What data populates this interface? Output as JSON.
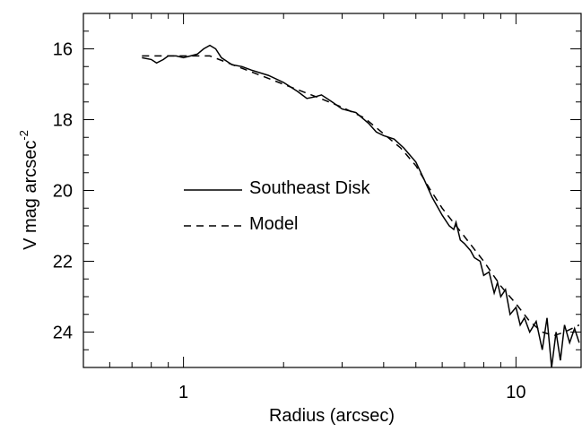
{
  "chart_data": {
    "type": "line",
    "xlabel": "Radius (arcsec)",
    "ylabel": {
      "text": "V mag arcsec",
      "superscript": "-2"
    },
    "xscale": "log",
    "xlim": [
      0.5,
      15.7
    ],
    "xticks": [
      1,
      10
    ],
    "xminorticks": [
      0.5,
      0.6,
      0.7,
      0.8,
      0.9,
      2,
      3,
      4,
      5,
      6,
      7,
      8,
      9
    ],
    "ylim": [
      25,
      15
    ],
    "yticks": [
      16,
      18,
      20,
      22,
      24
    ],
    "yminorticks": [
      15,
      15.5,
      16.5,
      17,
      17.5,
      18.5,
      19,
      19.5,
      20.5,
      21,
      21.5,
      22.5,
      23,
      23.5,
      24.5,
      25
    ],
    "legend": "center-left",
    "series": [
      {
        "name": "Southeast Disk",
        "color": "#000000",
        "dash": "solid",
        "x": [
          0.75,
          0.8,
          0.83,
          0.87,
          0.9,
          0.95,
          1.0,
          1.05,
          1.1,
          1.15,
          1.2,
          1.25,
          1.3,
          1.4,
          1.5,
          1.6,
          1.8,
          2.0,
          2.2,
          2.35,
          2.5,
          2.6,
          2.8,
          3.0,
          3.3,
          3.6,
          3.8,
          4.0,
          4.3,
          4.6,
          5.0,
          5.3,
          5.6,
          6.0,
          6.3,
          6.5,
          6.6,
          6.8,
          7.0,
          7.3,
          7.5,
          7.8,
          8.0,
          8.3,
          8.6,
          8.8,
          9.0,
          9.3,
          9.6,
          10.0,
          10.3,
          10.6,
          11.0,
          11.5,
          12.0,
          12.4,
          12.8,
          13.2,
          13.6,
          14.0,
          14.5,
          15.0,
          15.5
        ],
        "values": [
          16.25,
          16.3,
          16.4,
          16.3,
          16.2,
          16.2,
          16.25,
          16.2,
          16.15,
          16.0,
          15.9,
          16.0,
          16.25,
          16.45,
          16.5,
          16.6,
          16.75,
          16.95,
          17.2,
          17.4,
          17.35,
          17.3,
          17.5,
          17.7,
          17.8,
          18.1,
          18.35,
          18.45,
          18.55,
          18.8,
          19.2,
          19.7,
          20.2,
          20.7,
          21.0,
          21.1,
          20.9,
          21.4,
          21.5,
          21.7,
          21.9,
          22.0,
          22.4,
          22.3,
          22.9,
          22.6,
          23.0,
          22.8,
          23.5,
          23.3,
          23.8,
          23.6,
          24.0,
          23.7,
          24.5,
          23.6,
          25.0,
          24.0,
          24.8,
          23.8,
          24.3,
          23.9,
          24.3
        ]
      },
      {
        "name": "Model",
        "color": "#000000",
        "dash": "dashed",
        "x": [
          0.75,
          1.0,
          1.2,
          1.5,
          2.0,
          2.5,
          3.0,
          3.5,
          4.0,
          4.5,
          5.0,
          5.5,
          6.0,
          7.0,
          8.0,
          9.0,
          10.0,
          11.0,
          12.0,
          13.0,
          14.0,
          15.5
        ],
        "values": [
          16.2,
          16.2,
          16.2,
          16.55,
          17.0,
          17.35,
          17.65,
          17.95,
          18.4,
          18.8,
          19.3,
          19.95,
          20.5,
          21.3,
          22.0,
          22.7,
          23.2,
          23.7,
          24.0,
          24.1,
          24.0,
          23.8
        ]
      }
    ]
  }
}
